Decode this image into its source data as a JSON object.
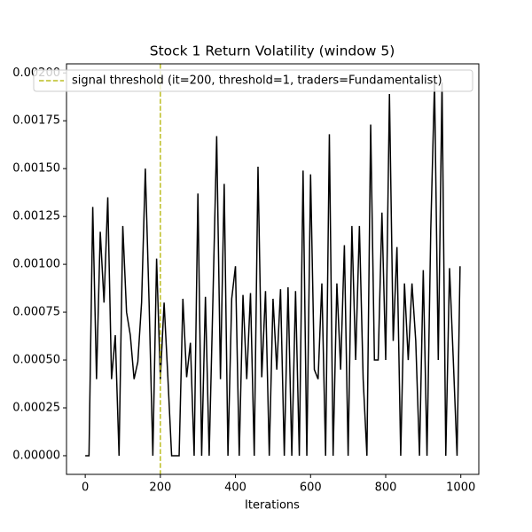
{
  "chart_data": {
    "type": "line",
    "title": "Stock 1 Return Volatility (window 5)",
    "x_label": "Iterations",
    "x": [
      0,
      10,
      20,
      30,
      40,
      50,
      60,
      70,
      80,
      90,
      100,
      110,
      120,
      130,
      140,
      150,
      160,
      170,
      180,
      190,
      200,
      210,
      220,
      230,
      240,
      250,
      260,
      270,
      280,
      290,
      300,
      310,
      320,
      330,
      340,
      350,
      360,
      370,
      380,
      390,
      400,
      410,
      420,
      430,
      440,
      450,
      460,
      470,
      480,
      490,
      500,
      510,
      520,
      530,
      540,
      550,
      560,
      570,
      580,
      590,
      600,
      610,
      620,
      630,
      640,
      650,
      660,
      670,
      680,
      690,
      700,
      710,
      720,
      730,
      740,
      750,
      760,
      770,
      780,
      790,
      800,
      810,
      820,
      830,
      840,
      850,
      860,
      870,
      880,
      890,
      900,
      910,
      920,
      930,
      940,
      950,
      960,
      970,
      980,
      990,
      998
    ],
    "series": [
      {
        "name": "",
        "color": "#000000",
        "values": [
          0,
          0,
          0.0013,
          0.0004,
          0.00117,
          0.0008,
          0.00135,
          0.0004,
          0.00063,
          0,
          0.0012,
          0.00075,
          0.00063,
          0.0004,
          0.00049,
          0.0008,
          0.0015,
          0.0008,
          0,
          0.00103,
          0.0004,
          0.0008,
          0.00041,
          0,
          0,
          0,
          0.00082,
          0.00041,
          0.00059,
          0,
          0.00137,
          0,
          0.00083,
          0,
          0.00082,
          0.00167,
          0.0004,
          0.00142,
          0,
          0.00082,
          0.00099,
          0,
          0.00084,
          0.0004,
          0.00085,
          0,
          0.00151,
          0.00041,
          0.00086,
          0,
          0.00082,
          0.00045,
          0.00087,
          0,
          0.00088,
          0,
          0.00086,
          0,
          0.00149,
          0,
          0.00147,
          0.00045,
          0.0004,
          0.0009,
          0,
          0.00168,
          0,
          0.0009,
          0.00045,
          0.0011,
          0,
          0.0012,
          0.0005,
          0.0012,
          0.0004,
          0,
          0.00173,
          0.0005,
          0.0005,
          0.00127,
          0.0005,
          0.00189,
          0.0006,
          0.00109,
          0,
          0.0009,
          0.0005,
          0.0009,
          0.0006,
          0,
          0.00097,
          0,
          0.00118,
          0.00195,
          0.0005,
          0.00195,
          0,
          0.00098,
          0.0005,
          0,
          0.00099
        ]
      }
    ],
    "vline": {
      "x": 200,
      "color": "#bcbd22",
      "name": "signal threshold (it=200, threshold=1, traders=Fundamentalist)"
    },
    "legend": "upper left",
    "xlim": [
      -49.9,
      1047.9
    ],
    "xticks": [
      0,
      200,
      400,
      600,
      800,
      1000
    ],
    "ylim": [
      -9.75e-05,
      0.0020475
    ],
    "yticks": [
      {
        "value": 0,
        "label": "0.00000"
      },
      {
        "value": 0.00025,
        "label": "0.00025"
      },
      {
        "value": 0.0005,
        "label": "0.00050"
      },
      {
        "value": 0.00075,
        "label": "0.00075"
      },
      {
        "value": 0.001,
        "label": "0.00100"
      },
      {
        "value": 0.00125,
        "label": "0.00125"
      },
      {
        "value": 0.0015,
        "label": "0.00150"
      },
      {
        "value": 0.00175,
        "label": "0.00175"
      },
      {
        "value": 0.002,
        "label": "0.00200"
      }
    ]
  }
}
